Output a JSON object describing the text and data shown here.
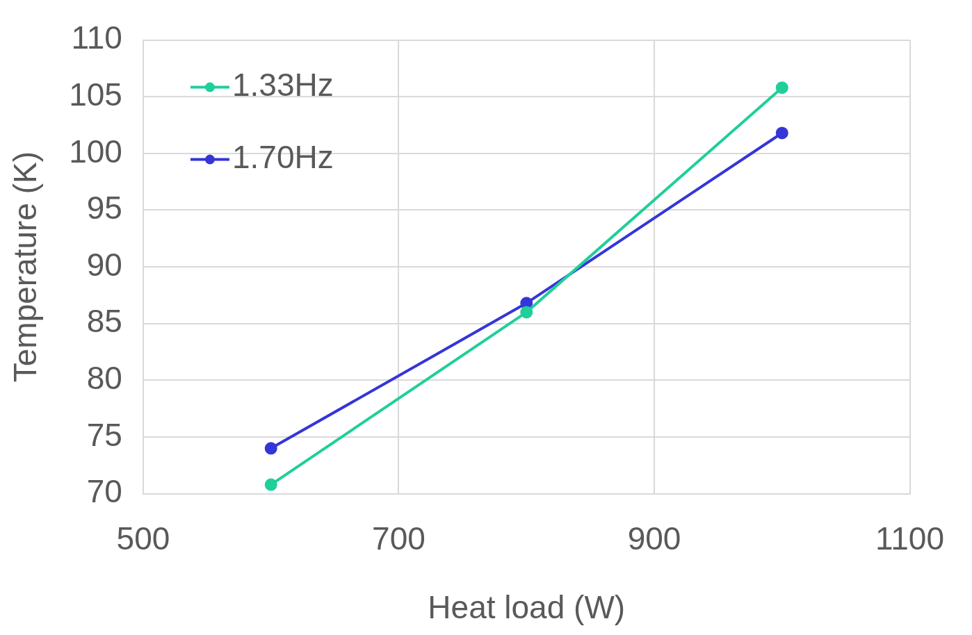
{
  "chart_data": {
    "type": "line",
    "xlabel": "Heat load (W)",
    "ylabel": "Temperature (K)",
    "x": [
      600,
      800,
      1000
    ],
    "series": [
      {
        "name": "1.33Hz",
        "color": "#1fcf9a",
        "values": [
          70.8,
          86.0,
          105.8
        ]
      },
      {
        "name": "1.70Hz",
        "color": "#3535d8",
        "values": [
          74.0,
          86.8,
          101.8
        ]
      }
    ],
    "xlim": [
      500,
      1100
    ],
    "xticks": [
      500,
      700,
      900,
      1100
    ],
    "ylim": [
      70,
      110
    ],
    "yticks": [
      70,
      75,
      80,
      85,
      90,
      95,
      100,
      105,
      110
    ],
    "grid": true,
    "legend": "top left",
    "marker": "circle",
    "line_style": "solid"
  }
}
